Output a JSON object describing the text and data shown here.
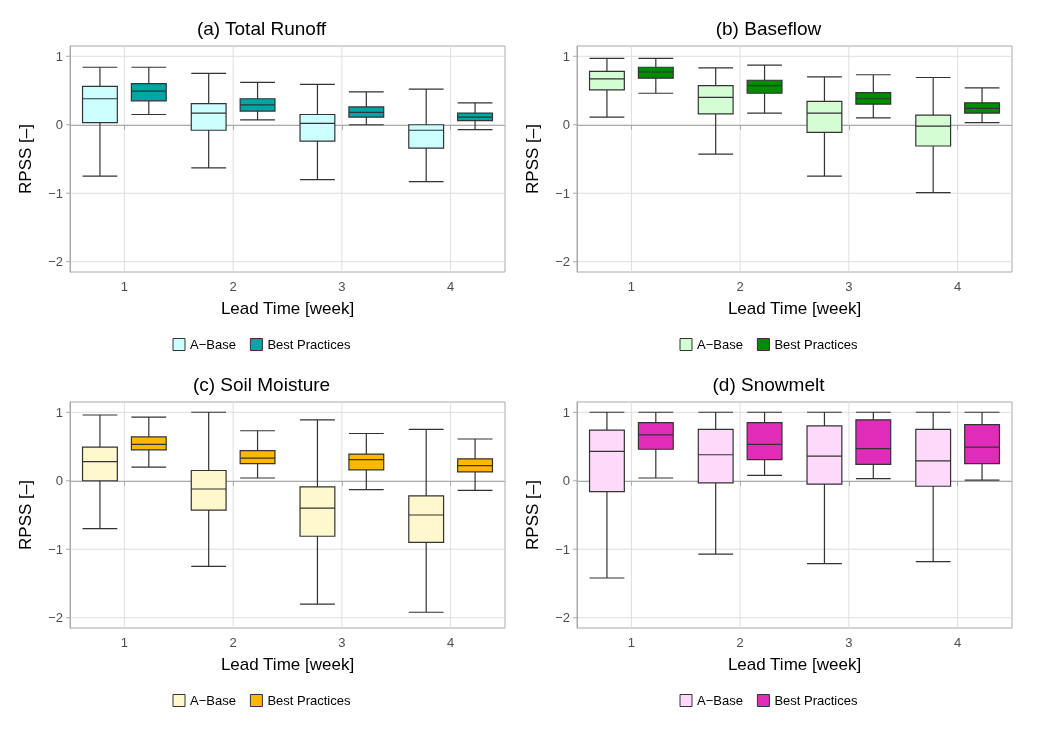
{
  "chart_data": [
    {
      "type": "box",
      "title": "(a) Total Runoff",
      "xlabel": "Lead Time [week]",
      "ylabel": "RPSS [–]",
      "categories": [
        "1",
        "2",
        "3",
        "4"
      ],
      "ylim": [
        -2.15,
        1.15
      ],
      "yticks": [
        -2,
        -1,
        0,
        1
      ],
      "grid": true,
      "legend": "bottom",
      "series": [
        {
          "name": "A−Base",
          "color": "#ccffff",
          "boxes": [
            {
              "low": -0.75,
              "q1": 0.03,
              "median": 0.38,
              "q3": 0.56,
              "high": 0.84
            },
            {
              "low": -0.63,
              "q1": -0.08,
              "median": 0.17,
              "q3": 0.31,
              "high": 0.75
            },
            {
              "low": -0.8,
              "q1": -0.24,
              "median": 0.02,
              "q3": 0.15,
              "high": 0.59
            },
            {
              "low": -0.83,
              "q1": -0.34,
              "median": -0.08,
              "q3": 0.0,
              "high": 0.52
            }
          ]
        },
        {
          "name": "Best Practices",
          "color": "#00a6a6",
          "boxes": [
            {
              "low": 0.15,
              "q1": 0.35,
              "median": 0.49,
              "q3": 0.6,
              "high": 0.84
            },
            {
              "low": 0.07,
              "q1": 0.2,
              "median": 0.29,
              "q3": 0.38,
              "high": 0.62
            },
            {
              "low": 0.0,
              "q1": 0.11,
              "median": 0.18,
              "q3": 0.26,
              "high": 0.48
            },
            {
              "low": -0.07,
              "q1": 0.06,
              "median": 0.11,
              "q3": 0.17,
              "high": 0.32
            }
          ]
        }
      ]
    },
    {
      "type": "box",
      "title": "(b) Baseflow",
      "xlabel": "Lead Time [week]",
      "ylabel": "RPSS [–]",
      "categories": [
        "1",
        "2",
        "3",
        "4"
      ],
      "ylim": [
        -2.15,
        1.15
      ],
      "yticks": [
        -2,
        -1,
        0,
        1
      ],
      "grid": true,
      "legend": "bottom",
      "series": [
        {
          "name": "A−Base",
          "color": "#d4fdd4",
          "boxes": [
            {
              "low": 0.11,
              "q1": 0.51,
              "median": 0.67,
              "q3": 0.78,
              "high": 0.97
            },
            {
              "low": -0.43,
              "q1": 0.16,
              "median": 0.4,
              "q3": 0.57,
              "high": 0.83
            },
            {
              "low": -0.75,
              "q1": -0.11,
              "median": 0.17,
              "q3": 0.34,
              "high": 0.7
            },
            {
              "low": -0.99,
              "q1": -0.31,
              "median": -0.02,
              "q3": 0.14,
              "high": 0.69
            }
          ]
        },
        {
          "name": "Best Practices",
          "color": "#008c00",
          "boxes": [
            {
              "low": 0.46,
              "q1": 0.68,
              "median": 0.77,
              "q3": 0.84,
              "high": 0.97
            },
            {
              "low": 0.17,
              "q1": 0.46,
              "median": 0.57,
              "q3": 0.65,
              "high": 0.87
            },
            {
              "low": 0.1,
              "q1": 0.3,
              "median": 0.38,
              "q3": 0.47,
              "high": 0.73
            },
            {
              "low": 0.03,
              "q1": 0.17,
              "median": 0.24,
              "q3": 0.32,
              "high": 0.54
            }
          ]
        }
      ]
    },
    {
      "type": "box",
      "title": "(c) Soil Moisture",
      "xlabel": "Lead Time [week]",
      "ylabel": "RPSS [–]",
      "categories": [
        "1",
        "2",
        "3",
        "4"
      ],
      "ylim": [
        -2.15,
        1.15
      ],
      "yticks": [
        -2,
        -1,
        0,
        1
      ],
      "grid": true,
      "legend": "bottom",
      "series": [
        {
          "name": "A−Base",
          "color": "#fff8cc",
          "boxes": [
            {
              "low": -0.7,
              "q1": 0.0,
              "median": 0.28,
              "q3": 0.49,
              "high": 0.96
            },
            {
              "low": -1.25,
              "q1": -0.43,
              "median": -0.12,
              "q3": 0.15,
              "high": 1.0
            },
            {
              "low": -1.8,
              "q1": -0.81,
              "median": -0.4,
              "q3": -0.09,
              "high": 0.89
            },
            {
              "low": -1.92,
              "q1": -0.9,
              "median": -0.5,
              "q3": -0.22,
              "high": 0.75
            }
          ]
        },
        {
          "name": "Best Practices",
          "color": "#ffb800",
          "boxes": [
            {
              "low": 0.2,
              "q1": 0.45,
              "median": 0.53,
              "q3": 0.64,
              "high": 0.93
            },
            {
              "low": 0.04,
              "q1": 0.25,
              "median": 0.33,
              "q3": 0.44,
              "high": 0.73
            },
            {
              "low": -0.13,
              "q1": 0.16,
              "median": 0.31,
              "q3": 0.39,
              "high": 0.69
            },
            {
              "low": -0.14,
              "q1": 0.13,
              "median": 0.22,
              "q3": 0.32,
              "high": 0.61
            }
          ]
        }
      ]
    },
    {
      "type": "box",
      "title": "(d) Snowmelt",
      "xlabel": "Lead Time [week]",
      "ylabel": "RPSS [–]",
      "categories": [
        "1",
        "2",
        "3",
        "4"
      ],
      "ylim": [
        -2.15,
        1.15
      ],
      "yticks": [
        -2,
        -1,
        0,
        1
      ],
      "grid": true,
      "legend": "bottom",
      "series": [
        {
          "name": "A−Base",
          "color": "#ffd9fa",
          "boxes": [
            {
              "low": -1.42,
              "q1": -0.16,
              "median": 0.43,
              "q3": 0.74,
              "high": 1.0
            },
            {
              "low": -1.07,
              "q1": -0.03,
              "median": 0.38,
              "q3": 0.75,
              "high": 1.0
            },
            {
              "low": -1.21,
              "q1": -0.05,
              "median": 0.36,
              "q3": 0.8,
              "high": 1.0
            },
            {
              "low": -1.18,
              "q1": -0.08,
              "median": 0.29,
              "q3": 0.75,
              "high": 1.0
            }
          ]
        },
        {
          "name": "Best Practices",
          "color": "#e02cb8",
          "boxes": [
            {
              "low": 0.04,
              "q1": 0.46,
              "median": 0.67,
              "q3": 0.85,
              "high": 1.0
            },
            {
              "low": 0.08,
              "q1": 0.31,
              "median": 0.53,
              "q3": 0.85,
              "high": 1.0
            },
            {
              "low": 0.03,
              "q1": 0.24,
              "median": 0.47,
              "q3": 0.89,
              "high": 1.0
            },
            {
              "low": 0.01,
              "q1": 0.25,
              "median": 0.49,
              "q3": 0.82,
              "high": 1.0
            }
          ]
        }
      ]
    }
  ]
}
